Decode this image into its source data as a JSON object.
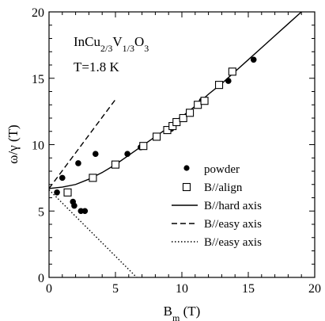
{
  "chart_data": {
    "type": "scatter",
    "title": "",
    "annotations": {
      "compound": {
        "base": "InCu",
        "sub1": "2/3",
        "mid": "V",
        "sub2": "1/3",
        "tail": "O",
        "sub3": "3"
      },
      "temperature": "T=1.8 K"
    },
    "xlabel": {
      "main": "B",
      "sub": "m",
      "unit": " (T)"
    },
    "ylabel": "ω/γ (T)",
    "xlim": [
      0,
      20
    ],
    "ylim": [
      0,
      20
    ],
    "xticks": [
      0,
      5,
      10,
      15,
      20
    ],
    "yticks": [
      0,
      5,
      10,
      15,
      20
    ],
    "grid": false,
    "legend_position": "right",
    "series": [
      {
        "name": "powder",
        "marker": "filled-circle",
        "points": [
          [
            0.6,
            6.4
          ],
          [
            1.0,
            7.5
          ],
          [
            2.2,
            8.6
          ],
          [
            3.5,
            9.3
          ],
          [
            1.8,
            5.7
          ],
          [
            1.9,
            5.4
          ],
          [
            2.4,
            5.0
          ],
          [
            2.7,
            5.0
          ],
          [
            5.9,
            9.3
          ],
          [
            6.9,
            9.8
          ],
          [
            9.2,
            11.2
          ],
          [
            10.0,
            12.0
          ],
          [
            11.5,
            13.3
          ],
          [
            13.5,
            14.8
          ],
          [
            15.4,
            16.4
          ]
        ]
      },
      {
        "name": "B//align",
        "marker": "open-square",
        "points": [
          [
            1.4,
            6.4
          ],
          [
            3.3,
            7.5
          ],
          [
            5.0,
            8.5
          ],
          [
            7.1,
            9.9
          ],
          [
            8.1,
            10.6
          ],
          [
            8.9,
            11.1
          ],
          [
            9.3,
            11.4
          ],
          [
            9.6,
            11.7
          ],
          [
            10.1,
            12.0
          ],
          [
            10.6,
            12.4
          ],
          [
            11.2,
            13.0
          ],
          [
            11.7,
            13.3
          ],
          [
            12.8,
            14.5
          ],
          [
            13.8,
            15.5
          ]
        ]
      },
      {
        "name": "B//hard axis",
        "line": "solid",
        "x": [
          0,
          1,
          2,
          3,
          4,
          5,
          6,
          7,
          8,
          9,
          10,
          11,
          12,
          13,
          14,
          15,
          16,
          17,
          18,
          19
        ],
        "y": [
          6.7,
          6.8,
          7.0,
          7.4,
          7.9,
          8.5,
          9.2,
          9.9,
          10.6,
          11.3,
          12.1,
          12.9,
          13.8,
          14.6,
          15.5,
          16.4,
          17.3,
          18.2,
          19.1,
          20.0
        ]
      },
      {
        "name": "B//easy axis",
        "line": "dashed",
        "x": [
          0,
          5.0
        ],
        "y": [
          6.7,
          13.4
        ]
      },
      {
        "name": "B//easy axis",
        "line": "dotted",
        "x": [
          0,
          6.6
        ],
        "y": [
          6.6,
          0
        ]
      }
    ]
  }
}
